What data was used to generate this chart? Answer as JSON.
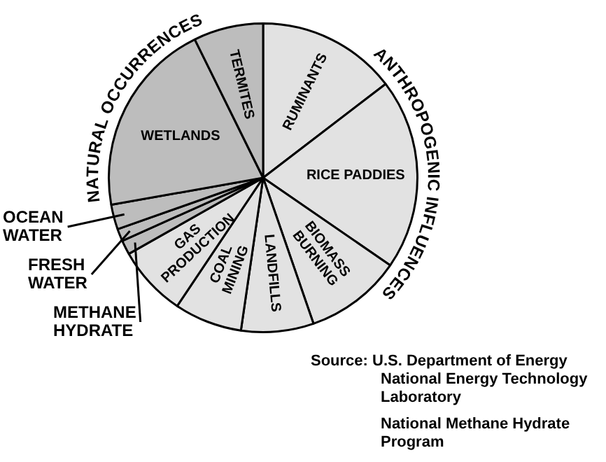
{
  "chart_data": {
    "type": "pie",
    "categories": [
      "RUMINANTS",
      "RICE PADDIES",
      "BIOMASS BURNING",
      "LANDFILLS",
      "COAL MINING",
      "GAS PRODUCTION",
      "METHANE HYDRATE",
      "FRESH WATER",
      "OCEAN WATER",
      "WETLANDS",
      "TERMITES"
    ],
    "values": [
      14.6,
      20.0,
      10.1,
      7.6,
      7.1,
      7.4,
      1.5,
      1.3,
      2.6,
      20.5,
      7.3
    ],
    "colors": [
      "#e2e2e2",
      "#e2e2e2",
      "#e2e2e2",
      "#e2e2e2",
      "#e2e2e2",
      "#e2e2e2",
      "#bdbdbd",
      "#bdbdbd",
      "#bdbdbd",
      "#bdbdbd",
      "#bdbdbd"
    ],
    "legend": false,
    "annotations": [
      "NATURAL OCCURRENCES",
      "ANTHROPOGENIC INFLUENCES",
      "Source: U.S. Department of Energy National Energy Technology Laboratory",
      "National Methane Hydrate Program"
    ]
  }
}
